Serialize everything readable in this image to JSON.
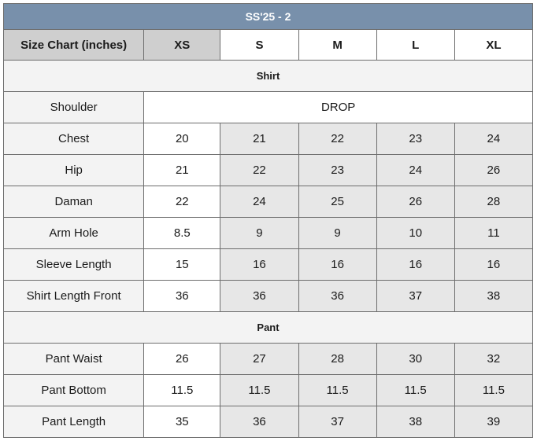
{
  "title": "SS'25 - 2",
  "header": {
    "label": "Size Chart (inches)",
    "sizes": [
      "XS",
      "S",
      "M",
      "L",
      "XL"
    ]
  },
  "colors": {
    "title_bg": "#7890ab",
    "header_gray": "#cfcfcf",
    "cell_gray": "#e7e7e7",
    "label_bg": "#f3f3f3"
  },
  "sections": {
    "shirt": {
      "title": "Shirt",
      "shoulder": {
        "label": "Shoulder",
        "value": "DROP"
      },
      "rows": [
        {
          "label": "Chest",
          "values": [
            "20",
            "21",
            "22",
            "23",
            "24"
          ]
        },
        {
          "label": "Hip",
          "values": [
            "21",
            "22",
            "23",
            "24",
            "26"
          ]
        },
        {
          "label": "Daman",
          "values": [
            "22",
            "24",
            "25",
            "26",
            "28"
          ]
        },
        {
          "label": "Arm Hole",
          "values": [
            "8.5",
            "9",
            "9",
            "10",
            "11"
          ]
        },
        {
          "label": "Sleeve Length",
          "values": [
            "15",
            "16",
            "16",
            "16",
            "16"
          ]
        },
        {
          "label": "Shirt Length Front",
          "values": [
            "36",
            "36",
            "36",
            "37",
            "38"
          ]
        }
      ]
    },
    "pant": {
      "title": "Pant",
      "rows": [
        {
          "label": "Pant Waist",
          "values": [
            "26",
            "27",
            "28",
            "30",
            "32"
          ]
        },
        {
          "label": "Pant Bottom",
          "values": [
            "11.5",
            "11.5",
            "11.5",
            "11.5",
            "11.5"
          ]
        },
        {
          "label": "Pant Length",
          "values": [
            "35",
            "36",
            "37",
            "38",
            "39"
          ]
        }
      ]
    }
  }
}
